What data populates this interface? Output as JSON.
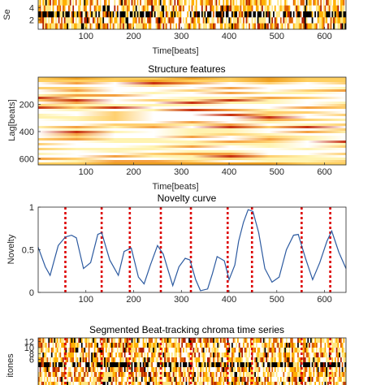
{
  "chart_data": [
    {
      "type": "heatmap",
      "title": "",
      "xlabel": "Time[beats]",
      "ylabel": "Se",
      "xlim": [
        0,
        645
      ],
      "ylim": [
        0,
        6
      ],
      "xticks": [
        100,
        200,
        300,
        400,
        500,
        600
      ],
      "yticks": [
        2,
        4
      ],
      "colormap": [
        "#ffffff",
        "#ffe680",
        "#ffb000",
        "#e06000",
        "#b02000",
        "#000000"
      ],
      "grid": false
    },
    {
      "type": "heatmap",
      "title": "Structure features",
      "xlabel": "Time[beats]",
      "ylabel": "Lag[beats]",
      "xlim": [
        0,
        645
      ],
      "ylim": [
        0,
        645
      ],
      "xticks": [
        100,
        200,
        300,
        400,
        500,
        600
      ],
      "yticks": [
        200,
        400,
        600
      ],
      "colormap": [
        "#ffffff",
        "#ffe680",
        "#ffb000",
        "#e06000",
        "#b02000"
      ],
      "grid": false
    },
    {
      "type": "line",
      "title": "Novelty curve",
      "xlabel": "",
      "ylabel": "Novelty",
      "xlim": [
        0,
        645
      ],
      "ylim": [
        0,
        1
      ],
      "xticks": [
        100,
        200,
        300,
        400,
        500,
        600
      ],
      "yticks": [
        0,
        0.5,
        1
      ],
      "ytick_labels": [
        "0",
        "0.5",
        "1"
      ],
      "grid": false,
      "series": [
        {
          "color": "#2c5aa0",
          "x": [
            0,
            15,
            25,
            42,
            57,
            70,
            80,
            95,
            110,
            125,
            133,
            150,
            168,
            180,
            195,
            210,
            222,
            235,
            250,
            262,
            270,
            282,
            295,
            308,
            318,
            330,
            340,
            355,
            365,
            375,
            390,
            400,
            412,
            420,
            430,
            440,
            450,
            462,
            475,
            490,
            505,
            520,
            535,
            545,
            560,
            575,
            590,
            605,
            615,
            630,
            645
          ],
          "y": [
            0.53,
            0.3,
            0.2,
            0.55,
            0.65,
            0.67,
            0.64,
            0.28,
            0.35,
            0.68,
            0.7,
            0.38,
            0.2,
            0.48,
            0.52,
            0.18,
            0.1,
            0.32,
            0.55,
            0.45,
            0.3,
            0.08,
            0.3,
            0.4,
            0.38,
            0.15,
            0.02,
            0.04,
            0.22,
            0.42,
            0.37,
            0.15,
            0.32,
            0.6,
            0.82,
            0.97,
            0.95,
            0.7,
            0.28,
            0.12,
            0.18,
            0.5,
            0.67,
            0.68,
            0.4,
            0.15,
            0.35,
            0.6,
            0.72,
            0.47,
            0.28
          ]
        }
      ],
      "boundaries": {
        "color": "#dd0000",
        "x": [
          57,
          133,
          192,
          257,
          320,
          397,
          448,
          552,
          612
        ]
      }
    },
    {
      "type": "heatmap",
      "title": "Segmented Beat-tracking chroma time series",
      "xlabel": "",
      "ylabel": "itones",
      "xlim": [
        0,
        645
      ],
      "ylim": [
        0,
        13
      ],
      "yticks": [
        6,
        8,
        10,
        12
      ],
      "colormap": [
        "#ffffff",
        "#ffe680",
        "#ffb000",
        "#e06000",
        "#b02000",
        "#000000"
      ],
      "boundaries_x": [
        57,
        133,
        192,
        257,
        320,
        397,
        448,
        552,
        612
      ],
      "grid": false
    }
  ]
}
